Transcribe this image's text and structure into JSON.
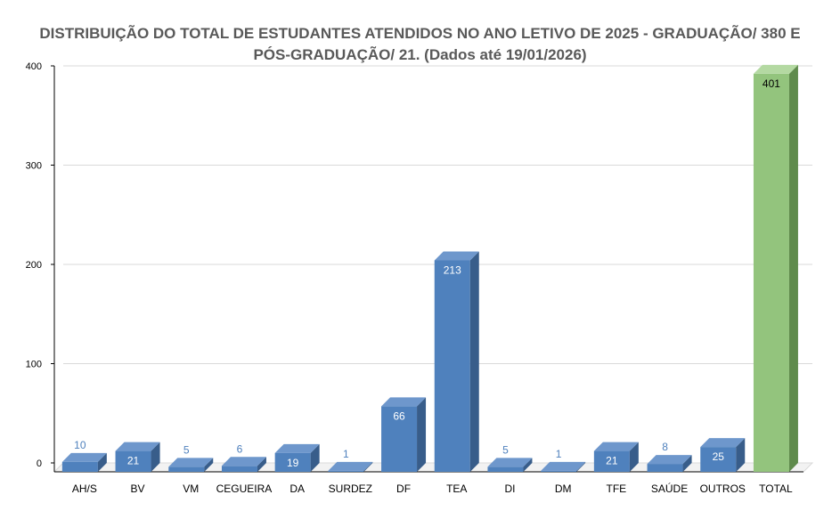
{
  "chart_data": {
    "type": "bar",
    "title_line1": "DISTRIBUIÇÃO DO TOTAL DE ESTUDANTES ATENDIDOS NO ANO LETIVO DE 2025 - GRADUAÇÃO/ 380 E",
    "title_line2": "PÓS-GRADUAÇÃO/ 21. (Dados até 19/01/2026)",
    "xlabel": "",
    "ylabel": "",
    "ylim": [
      0,
      400
    ],
    "yticks": [
      "0",
      "100",
      "200",
      "300",
      "400"
    ],
    "grid": true,
    "legend": "none",
    "categories": [
      "AH/S",
      "BV",
      "VM",
      "CEGUEIRA",
      "DA",
      "SURDEZ",
      "DF",
      "TEA",
      "DI",
      "DM",
      "TFE",
      "SAÚDE",
      "OUTROS",
      "TOTAL"
    ],
    "values": [
      10,
      21,
      5,
      6,
      19,
      1,
      66,
      213,
      5,
      1,
      21,
      8,
      25,
      401
    ],
    "data_labels": [
      "10",
      "21",
      "5",
      "6",
      "19",
      "1",
      "66",
      "213",
      "5",
      "1",
      "21",
      "8",
      "25",
      "401"
    ],
    "colors": {
      "bar": "#4F81BD",
      "bar_side": "#385D8A",
      "bar_top": "#6E97CC",
      "total_bar": "#93C47D",
      "total_side": "#5F8B4C",
      "total_top": "#B4D9A2",
      "gridline": "#D9D9D9",
      "title": "#595959",
      "outside_label": "#4F81BD"
    }
  }
}
